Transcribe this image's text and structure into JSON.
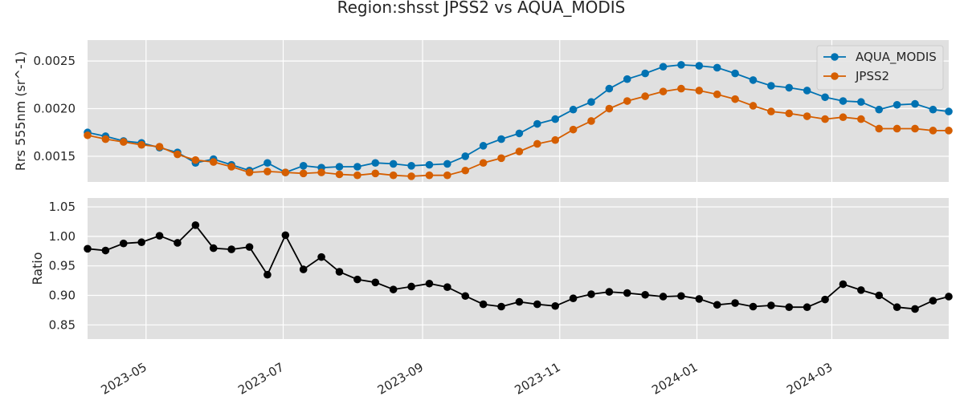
{
  "title": "Region:shsst JPSS2 vs AQUA_MODIS",
  "colors": {
    "aqua": "#0072b2",
    "jpss2": "#d55e00",
    "ratio": "#000000",
    "panel_bg": "#e0e0e0",
    "grid": "#ffffff"
  },
  "chart_data": [
    {
      "type": "line",
      "ylabel": "Rrs 555nm (sr^-1)",
      "ylim": [
        0.00123,
        0.00272
      ],
      "xlim": [
        "2023-04-05",
        "2024-04-22"
      ],
      "yticks": [
        0.0015,
        0.002,
        0.0025
      ],
      "ytick_labels": [
        "0.0015",
        "0.0020",
        "0.0025"
      ],
      "grid": true,
      "legend": "top-right",
      "x": [
        "2023-04-05",
        "2023-04-13",
        "2023-04-21",
        "2023-04-29",
        "2023-05-07",
        "2023-05-15",
        "2023-05-23",
        "2023-05-31",
        "2023-06-08",
        "2023-06-16",
        "2023-06-24",
        "2023-07-02",
        "2023-07-10",
        "2023-07-18",
        "2023-07-26",
        "2023-08-03",
        "2023-08-11",
        "2023-08-19",
        "2023-08-27",
        "2023-09-04",
        "2023-09-12",
        "2023-09-20",
        "2023-09-28",
        "2023-10-06",
        "2023-10-14",
        "2023-10-22",
        "2023-10-30",
        "2023-11-07",
        "2023-11-15",
        "2023-11-23",
        "2023-12-01",
        "2023-12-09",
        "2023-12-17",
        "2023-12-25",
        "2024-01-02",
        "2024-01-10",
        "2024-01-18",
        "2024-01-26",
        "2024-02-03",
        "2024-02-11",
        "2024-02-19",
        "2024-02-27",
        "2024-03-06",
        "2024-03-14",
        "2024-03-22",
        "2024-03-30",
        "2024-04-07",
        "2024-04-15",
        "2024-04-22"
      ],
      "series": [
        {
          "name": "AQUA_MODIS",
          "color_key": "aqua",
          "values": [
            0.00175,
            0.00171,
            0.00166,
            0.00164,
            0.00159,
            0.00154,
            0.00143,
            0.00147,
            0.00141,
            0.00135,
            0.00143,
            0.00133,
            0.0014,
            0.00138,
            0.00139,
            0.00139,
            0.00143,
            0.00142,
            0.0014,
            0.00141,
            0.00142,
            0.0015,
            0.00161,
            0.00168,
            0.00174,
            0.00184,
            0.00189,
            0.00199,
            0.00207,
            0.00221,
            0.00231,
            0.00237,
            0.00244,
            0.00246,
            0.00245,
            0.00243,
            0.00237,
            0.0023,
            0.00224,
            0.00222,
            0.00219,
            0.00212,
            0.00208,
            0.00207,
            0.00199,
            0.00204,
            0.00205,
            0.00199,
            0.00197
          ]
        },
        {
          "name": "JPSS2",
          "color_key": "jpss2",
          "values": [
            0.00172,
            0.00168,
            0.00165,
            0.00162,
            0.0016,
            0.00152,
            0.00146,
            0.00144,
            0.00139,
            0.00133,
            0.00134,
            0.00133,
            0.00132,
            0.00133,
            0.00131,
            0.0013,
            0.00132,
            0.0013,
            0.00129,
            0.0013,
            0.0013,
            0.00135,
            0.00143,
            0.00148,
            0.00155,
            0.00163,
            0.00167,
            0.00178,
            0.00187,
            0.002,
            0.00208,
            0.00213,
            0.00218,
            0.00221,
            0.00219,
            0.00215,
            0.0021,
            0.00203,
            0.00197,
            0.00195,
            0.00192,
            0.00189,
            0.00191,
            0.00189,
            0.00179,
            0.00179,
            0.00179,
            0.00177,
            0.00177
          ]
        }
      ]
    },
    {
      "type": "line",
      "ylabel": "Ratio",
      "ylim": [
        0.826,
        1.065
      ],
      "xlim": [
        "2023-04-05",
        "2024-04-22"
      ],
      "yticks": [
        0.85,
        0.9,
        0.95,
        1.0,
        1.05
      ],
      "ytick_labels": [
        "0.85",
        "0.90",
        "0.95",
        "1.00",
        "1.05"
      ],
      "xticks": [
        "2023-05-01",
        "2023-07-01",
        "2023-09-01",
        "2023-11-01",
        "2024-01-01",
        "2024-03-01"
      ],
      "xtick_labels": [
        "2023-05",
        "2023-07",
        "2023-09",
        "2023-11",
        "2024-01",
        "2024-03"
      ],
      "grid": true,
      "x": [
        "2023-04-05",
        "2023-04-13",
        "2023-04-21",
        "2023-04-29",
        "2023-05-07",
        "2023-05-15",
        "2023-05-23",
        "2023-05-31",
        "2023-06-08",
        "2023-06-16",
        "2023-06-24",
        "2023-07-02",
        "2023-07-10",
        "2023-07-18",
        "2023-07-26",
        "2023-08-03",
        "2023-08-11",
        "2023-08-19",
        "2023-08-27",
        "2023-09-04",
        "2023-09-12",
        "2023-09-20",
        "2023-09-28",
        "2023-10-06",
        "2023-10-14",
        "2023-10-22",
        "2023-10-30",
        "2023-11-07",
        "2023-11-15",
        "2023-11-23",
        "2023-12-01",
        "2023-12-09",
        "2023-12-17",
        "2023-12-25",
        "2024-01-02",
        "2024-01-10",
        "2024-01-18",
        "2024-01-26",
        "2024-02-03",
        "2024-02-11",
        "2024-02-19",
        "2024-02-27",
        "2024-03-06",
        "2024-03-14",
        "2024-03-22",
        "2024-03-30",
        "2024-04-07",
        "2024-04-15",
        "2024-04-22"
      ],
      "series": [
        {
          "name": "",
          "color_key": "ratio",
          "values": [
            0.979,
            0.976,
            0.988,
            0.99,
            1.001,
            0.989,
            1.019,
            0.98,
            0.978,
            0.982,
            0.935,
            1.002,
            0.944,
            0.965,
            0.94,
            0.927,
            0.922,
            0.91,
            0.915,
            0.92,
            0.914,
            0.899,
            0.885,
            0.881,
            0.889,
            0.885,
            0.882,
            0.895,
            0.902,
            0.906,
            0.904,
            0.901,
            0.898,
            0.899,
            0.894,
            0.884,
            0.887,
            0.881,
            0.883,
            0.88,
            0.88,
            0.893,
            0.919,
            0.909,
            0.9,
            0.88,
            0.877,
            0.891,
            0.898
          ]
        }
      ]
    }
  ]
}
